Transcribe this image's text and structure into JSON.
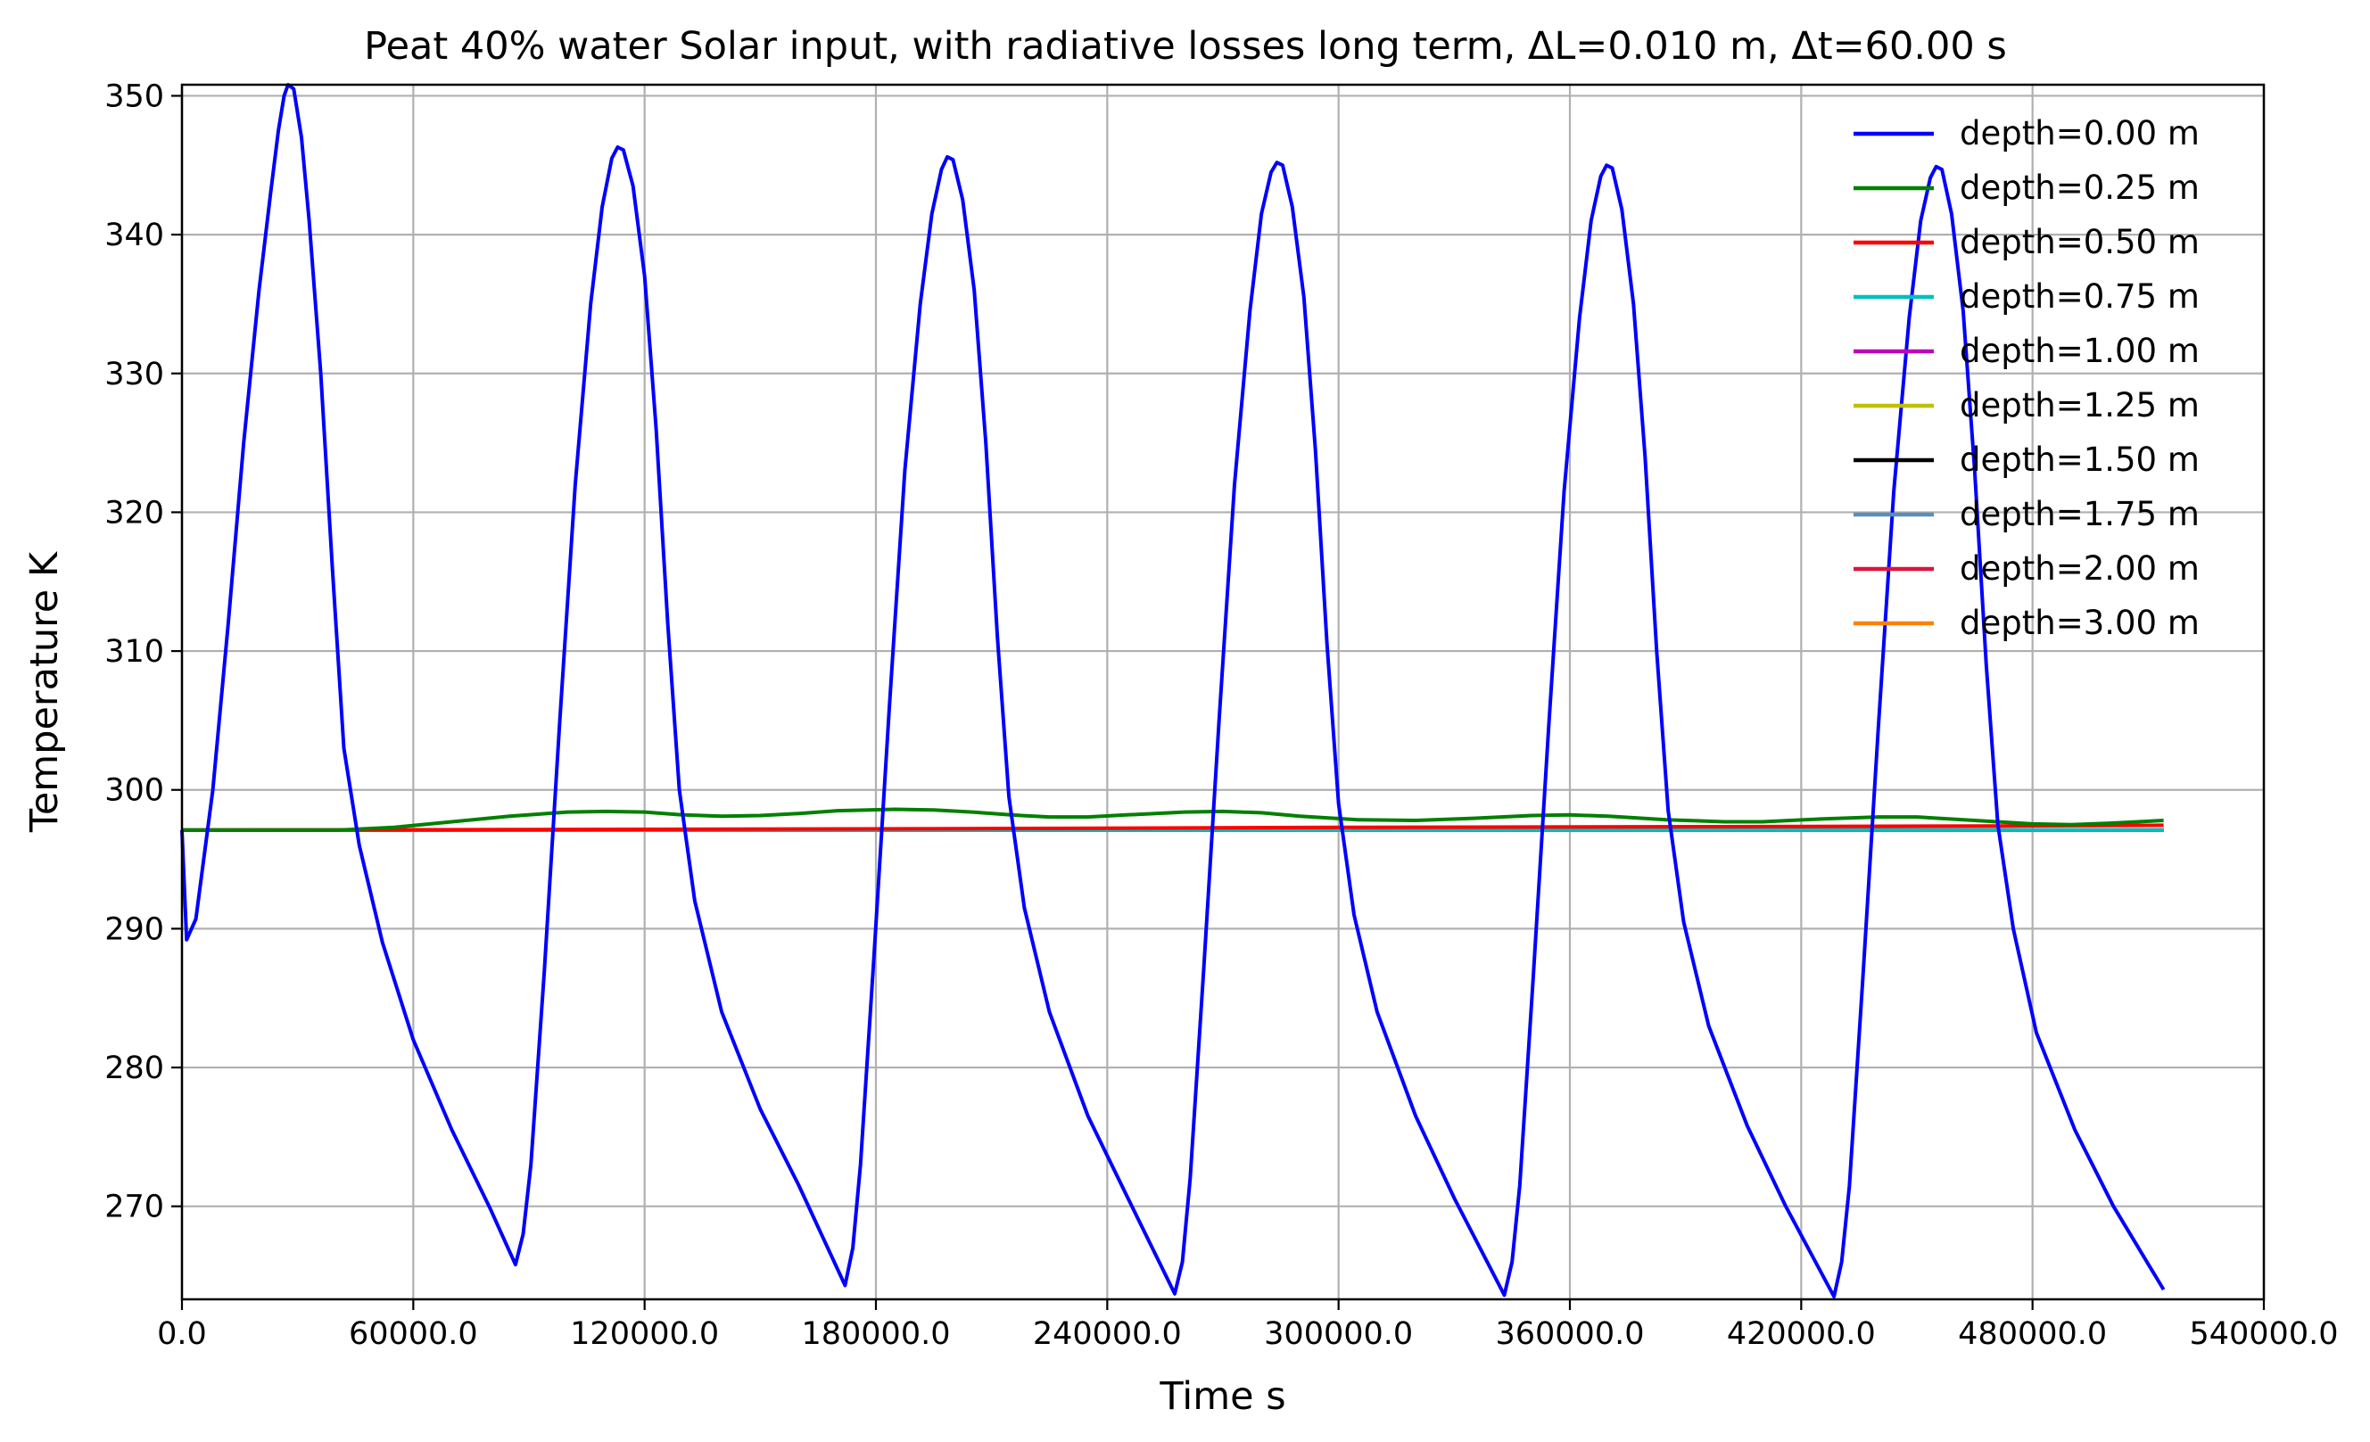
{
  "chart_data": {
    "type": "line",
    "title": "Peat 40% water Solar input, with radiative losses long term,  ΔL=0.010 m, Δt=60.00 s",
    "xlabel": "Time s",
    "ylabel": "Temperature K",
    "xlim": [
      0,
      540000
    ],
    "ylim": [
      263.3,
      350.8
    ],
    "xticks": [
      0,
      60000,
      120000,
      180000,
      240000,
      300000,
      360000,
      420000,
      480000,
      540000
    ],
    "xtick_labels": [
      "0.0",
      "60000.0",
      "120000.0",
      "180000.0",
      "240000.0",
      "300000.0",
      "360000.0",
      "420000.0",
      "480000.0",
      "540000.0"
    ],
    "yticks": [
      270,
      280,
      290,
      300,
      310,
      320,
      330,
      340,
      350
    ],
    "ytick_labels": [
      "270",
      "280",
      "290",
      "300",
      "310",
      "320",
      "330",
      "340",
      "350"
    ],
    "grid": true,
    "legend_position": "top-right",
    "series": [
      {
        "name": "depth=0.00 m",
        "color": "#0000ff",
        "points": [
          [
            0,
            297.1
          ],
          [
            1200,
            289.2
          ],
          [
            3600,
            290.7
          ],
          [
            8000,
            300.0
          ],
          [
            12000,
            312.0
          ],
          [
            16000,
            325.0
          ],
          [
            20000,
            336.0
          ],
          [
            23000,
            343.0
          ],
          [
            25000,
            347.5
          ],
          [
            26500,
            350.0
          ],
          [
            27500,
            350.8
          ],
          [
            29000,
            350.5
          ],
          [
            31000,
            347.0
          ],
          [
            33000,
            341.0
          ],
          [
            36000,
            330.0
          ],
          [
            39000,
            316.0
          ],
          [
            42000,
            303.0
          ],
          [
            46000,
            296.0
          ],
          [
            52000,
            289.0
          ],
          [
            60000,
            282.0
          ],
          [
            70000,
            275.5
          ],
          [
            80000,
            269.8
          ],
          [
            86500,
            265.8
          ],
          [
            88500,
            268.0
          ],
          [
            90500,
            273.0
          ],
          [
            94000,
            287.0
          ],
          [
            98000,
            305.0
          ],
          [
            102000,
            322.0
          ],
          [
            106000,
            335.0
          ],
          [
            109000,
            342.0
          ],
          [
            111500,
            345.5
          ],
          [
            113000,
            346.3
          ],
          [
            114500,
            346.1
          ],
          [
            117000,
            343.5
          ],
          [
            120000,
            337.0
          ],
          [
            123000,
            326.0
          ],
          [
            126000,
            312.0
          ],
          [
            129000,
            300.0
          ],
          [
            133000,
            292.0
          ],
          [
            140000,
            284.0
          ],
          [
            150000,
            277.0
          ],
          [
            160000,
            271.5
          ],
          [
            172000,
            264.3
          ],
          [
            174000,
            267.0
          ],
          [
            176000,
            273.0
          ],
          [
            179500,
            288.0
          ],
          [
            183500,
            306.0
          ],
          [
            187500,
            323.0
          ],
          [
            191500,
            335.0
          ],
          [
            194500,
            341.5
          ],
          [
            197000,
            344.7
          ],
          [
            198500,
            345.6
          ],
          [
            200000,
            345.4
          ],
          [
            202500,
            342.5
          ],
          [
            205500,
            336.0
          ],
          [
            208500,
            325.0
          ],
          [
            211500,
            311.0
          ],
          [
            214500,
            299.5
          ],
          [
            218500,
            291.5
          ],
          [
            225000,
            284.0
          ],
          [
            235000,
            276.5
          ],
          [
            245000,
            270.8
          ],
          [
            257500,
            263.7
          ],
          [
            259500,
            266.0
          ],
          [
            261500,
            272.0
          ],
          [
            265000,
            287.0
          ],
          [
            269000,
            305.0
          ],
          [
            273000,
            322.0
          ],
          [
            277000,
            334.5
          ],
          [
            280000,
            341.5
          ],
          [
            282500,
            344.5
          ],
          [
            284000,
            345.2
          ],
          [
            285500,
            345.0
          ],
          [
            288000,
            342.0
          ],
          [
            291000,
            335.5
          ],
          [
            294000,
            324.5
          ],
          [
            297000,
            310.5
          ],
          [
            300000,
            299.0
          ],
          [
            304000,
            291.0
          ],
          [
            310000,
            284.0
          ],
          [
            320000,
            276.5
          ],
          [
            330000,
            270.6
          ],
          [
            343000,
            263.6
          ],
          [
            345000,
            266.0
          ],
          [
            347000,
            271.5
          ],
          [
            350500,
            286.5
          ],
          [
            354500,
            304.5
          ],
          [
            358500,
            321.5
          ],
          [
            362500,
            334.0
          ],
          [
            365500,
            341.0
          ],
          [
            368000,
            344.2
          ],
          [
            369500,
            345.0
          ],
          [
            371000,
            344.8
          ],
          [
            373500,
            341.8
          ],
          [
            376500,
            335.0
          ],
          [
            379500,
            324.0
          ],
          [
            382500,
            310.0
          ],
          [
            385500,
            298.5
          ],
          [
            389500,
            290.5
          ],
          [
            396000,
            283.0
          ],
          [
            406000,
            275.8
          ],
          [
            416000,
            270.0
          ],
          [
            428500,
            263.5
          ],
          [
            430500,
            266.0
          ],
          [
            432500,
            271.5
          ],
          [
            436000,
            286.5
          ],
          [
            440000,
            304.5
          ],
          [
            444000,
            321.5
          ],
          [
            448000,
            334.0
          ],
          [
            451000,
            341.0
          ],
          [
            453500,
            344.1
          ],
          [
            455000,
            344.9
          ],
          [
            456500,
            344.7
          ],
          [
            459000,
            341.5
          ],
          [
            462000,
            334.5
          ],
          [
            465000,
            323.0
          ],
          [
            468000,
            309.0
          ],
          [
            471000,
            297.5
          ],
          [
            475000,
            290.0
          ],
          [
            481000,
            282.5
          ],
          [
            491000,
            275.5
          ],
          [
            501000,
            270.0
          ],
          [
            514000,
            264.0
          ]
        ]
      },
      {
        "name": "depth=0.25 m",
        "color": "#008000",
        "points": [
          [
            0,
            297.1
          ],
          [
            40000,
            297.1
          ],
          [
            55000,
            297.3
          ],
          [
            70000,
            297.7
          ],
          [
            85000,
            298.1
          ],
          [
            100000,
            298.4
          ],
          [
            110000,
            298.45
          ],
          [
            120000,
            298.4
          ],
          [
            130000,
            298.2
          ],
          [
            140000,
            298.1
          ],
          [
            150000,
            298.15
          ],
          [
            160000,
            298.3
          ],
          [
            170000,
            298.5
          ],
          [
            185000,
            298.6
          ],
          [
            195000,
            298.55
          ],
          [
            205000,
            298.4
          ],
          [
            215000,
            298.2
          ],
          [
            225000,
            298.05
          ],
          [
            235000,
            298.05
          ],
          [
            245000,
            298.2
          ],
          [
            260000,
            298.4
          ],
          [
            270000,
            298.45
          ],
          [
            280000,
            298.35
          ],
          [
            290000,
            298.1
          ],
          [
            305000,
            297.85
          ],
          [
            320000,
            297.8
          ],
          [
            335000,
            297.95
          ],
          [
            350000,
            298.15
          ],
          [
            360000,
            298.2
          ],
          [
            370000,
            298.1
          ],
          [
            385000,
            297.85
          ],
          [
            400000,
            297.7
          ],
          [
            410000,
            297.7
          ],
          [
            425000,
            297.9
          ],
          [
            440000,
            298.05
          ],
          [
            450000,
            298.05
          ],
          [
            465000,
            297.8
          ],
          [
            480000,
            297.55
          ],
          [
            490000,
            297.5
          ],
          [
            500000,
            297.6
          ],
          [
            514000,
            297.8
          ]
        ]
      },
      {
        "name": "depth=0.50 m",
        "color": "#ff0000",
        "points": [
          [
            0,
            297.1
          ],
          [
            100000,
            297.15
          ],
          [
            200000,
            297.2
          ],
          [
            300000,
            297.3
          ],
          [
            400000,
            297.35
          ],
          [
            470000,
            297.4
          ],
          [
            514000,
            297.45
          ]
        ]
      },
      {
        "name": "depth=0.75 m",
        "color": "#00bfbf",
        "points": [
          [
            0,
            297.1
          ],
          [
            514000,
            297.1
          ]
        ]
      },
      {
        "name": "depth=1.00 m",
        "color": "#bf00bf",
        "points": [
          [
            0,
            297.1
          ],
          [
            514000,
            297.1
          ]
        ]
      },
      {
        "name": "depth=1.25 m",
        "color": "#bfbf00",
        "points": [
          [
            0,
            297.1
          ],
          [
            514000,
            297.1
          ]
        ]
      },
      {
        "name": "depth=1.50 m",
        "color": "#000000",
        "points": [
          [
            0,
            297.1
          ],
          [
            514000,
            297.1
          ]
        ]
      },
      {
        "name": "depth=1.75 m",
        "color": "#5b8db8",
        "points": [
          [
            0,
            297.1
          ],
          [
            514000,
            297.1
          ]
        ]
      },
      {
        "name": "depth=2.00 m",
        "color": "#dc143c",
        "points": [
          [
            0,
            297.1
          ],
          [
            514000,
            297.1
          ]
        ]
      },
      {
        "name": "depth=3.00 m",
        "color": "#ff8000",
        "points": [
          [
            0,
            297.1
          ],
          [
            514000,
            297.1
          ]
        ]
      }
    ]
  }
}
